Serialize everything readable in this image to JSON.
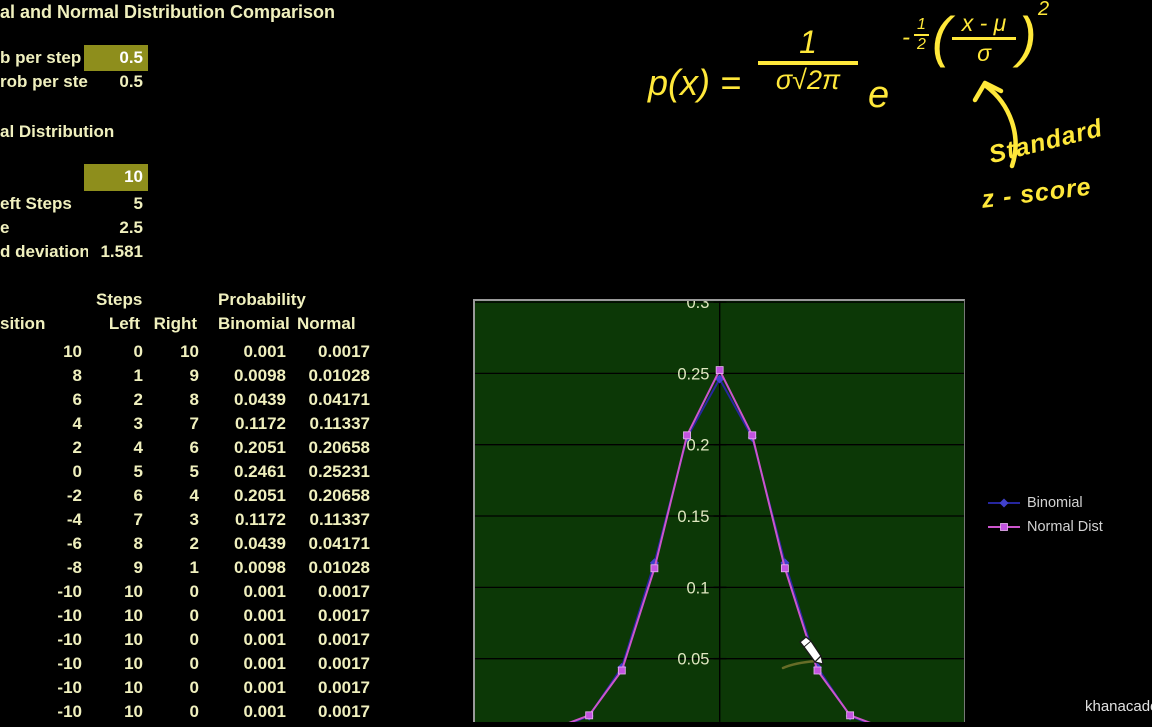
{
  "title": "al and Normal Distribution Comparison",
  "parameters": {
    "prob1": {
      "label": "b per step",
      "value": "0.5"
    },
    "prob2": {
      "label": "rob per ste",
      "value": "0.5"
    },
    "section": "al Distribution",
    "n": {
      "value": "10"
    },
    "left_steps": {
      "label": "eft Steps",
      "value": "5"
    },
    "variance": {
      "label": "e",
      "value": "2.5"
    },
    "std_dev": {
      "label": "d deviation",
      "value": "1.581"
    }
  },
  "table": {
    "group_headers": {
      "steps": "Steps",
      "probability": "Probability"
    },
    "col_headers": [
      "sition",
      "Left",
      "Right",
      "Binomial",
      "Normal"
    ],
    "rows": [
      [
        "10",
        "0",
        "10",
        "0.001",
        "0.0017"
      ],
      [
        "8",
        "1",
        "9",
        "0.0098",
        "0.01028"
      ],
      [
        "6",
        "2",
        "8",
        "0.0439",
        "0.04171"
      ],
      [
        "4",
        "3",
        "7",
        "0.1172",
        "0.11337"
      ],
      [
        "2",
        "4",
        "6",
        "0.2051",
        "0.20658"
      ],
      [
        "0",
        "5",
        "5",
        "0.2461",
        "0.25231"
      ],
      [
        "-2",
        "6",
        "4",
        "0.2051",
        "0.20658"
      ],
      [
        "-4",
        "7",
        "3",
        "0.1172",
        "0.11337"
      ],
      [
        "-6",
        "8",
        "2",
        "0.0439",
        "0.04171"
      ],
      [
        "-8",
        "9",
        "1",
        "0.0098",
        "0.01028"
      ],
      [
        "-10",
        "10",
        "0",
        "0.001",
        "0.0017"
      ],
      [
        "-10",
        "10",
        "0",
        "0.001",
        "0.0017"
      ],
      [
        "-10",
        "10",
        "0",
        "0.001",
        "0.0017"
      ],
      [
        "-10",
        "10",
        "0",
        "0.001",
        "0.0017"
      ],
      [
        "-10",
        "10",
        "0",
        "0.001",
        "0.0017"
      ],
      [
        "-10",
        "10",
        "0",
        "0.001",
        "0.0017"
      ]
    ]
  },
  "formula": {
    "lhs": "p(x) =",
    "numerator": "1",
    "denominator": "σ√2π",
    "base": "e",
    "exp_minus": "-",
    "exp_frac_num": "1",
    "exp_frac_den": "2",
    "paren_open": "(",
    "inner_num": "x - μ",
    "inner_den": "σ",
    "paren_close": ")",
    "exp_power": "2"
  },
  "annotations": {
    "word1": "Standard",
    "word2": "z - score"
  },
  "chart_data": {
    "type": "line",
    "title": "",
    "xlabel": "",
    "ylabel": "",
    "ylim": [
      0,
      0.3
    ],
    "yticks": [
      "0.3",
      "0.25",
      "0.2",
      "0.15",
      "0.1",
      "0.05"
    ],
    "grid": true,
    "legend_position": "right",
    "series": [
      {
        "name": "Binomial",
        "marker": "diamond",
        "line_color": "#26269e",
        "marker_color": "#4040cc",
        "values": [
          0.001,
          0.001,
          0.001,
          0.0098,
          0.0439,
          0.1172,
          0.2051,
          0.2461,
          0.2051,
          0.1172,
          0.0439,
          0.0098,
          0.001,
          0.001,
          0.001
        ]
      },
      {
        "name": "Normal Dist",
        "marker": "square",
        "line_color": "#cc55cc",
        "marker_color": "#c353e0",
        "values": [
          0.0017,
          0.0017,
          0.0017,
          0.01028,
          0.04171,
          0.11337,
          0.20658,
          0.25231,
          0.20658,
          0.11337,
          0.04171,
          0.01028,
          0.0017,
          0.0017,
          0.0017
        ]
      }
    ]
  },
  "colors": {
    "sheet_text": "#f0f0be",
    "highlight_bg": "#8e8e1c",
    "highlight_text": "#ffffff",
    "ink": "#ffe83a",
    "plot_bg": "#0c3806",
    "gridline": "#000000",
    "axis_label": "#dfe7c0",
    "legend_text": "#d2d2d2"
  },
  "watermark": "khanacademy"
}
